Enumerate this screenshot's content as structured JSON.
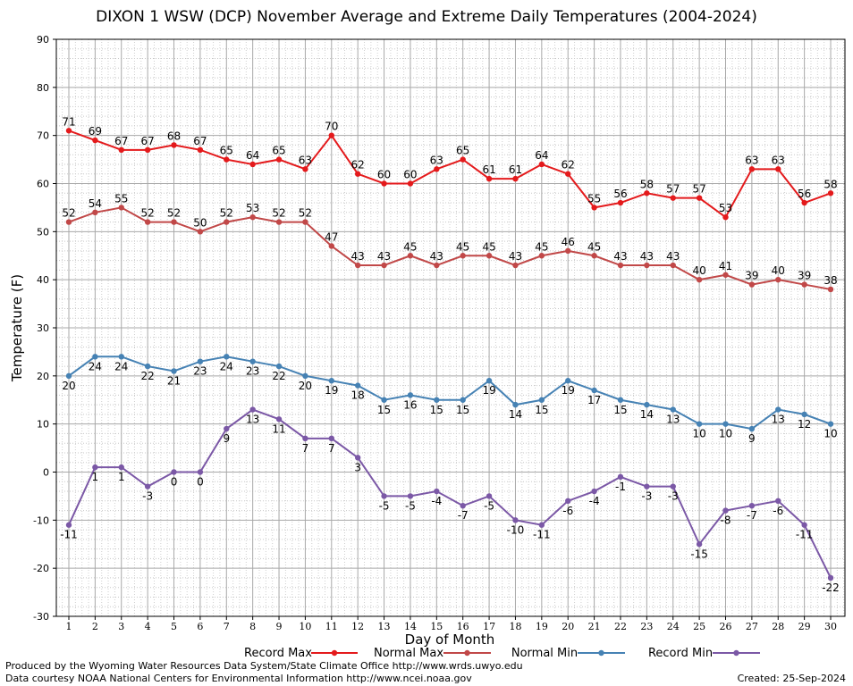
{
  "chart_data": {
    "type": "line",
    "title": "DIXON 1 WSW (DCP) November Average and Extreme Daily Temperatures (2004-2024)",
    "xlabel": "Day of Month",
    "ylabel": "Temperature (F)",
    "ylim": [
      -30,
      90
    ],
    "yticks": [
      -30,
      -20,
      -10,
      0,
      10,
      20,
      30,
      40,
      50,
      60,
      70,
      80,
      90
    ],
    "x": [
      1,
      2,
      3,
      4,
      5,
      6,
      7,
      8,
      9,
      10,
      11,
      12,
      13,
      14,
      15,
      16,
      17,
      18,
      19,
      20,
      21,
      22,
      23,
      24,
      25,
      26,
      27,
      28,
      29,
      30
    ],
    "grid": true,
    "legend": "bottom",
    "series": [
      {
        "name": "Record Max",
        "color": "#e41a1c",
        "label_pos": "above",
        "values": [
          71,
          69,
          67,
          67,
          68,
          67,
          65,
          64,
          65,
          63,
          70,
          62,
          60,
          60,
          63,
          65,
          61,
          61,
          64,
          62,
          55,
          56,
          58,
          57,
          57,
          53,
          63,
          63,
          56,
          58
        ]
      },
      {
        "name": "Normal Max",
        "color": "#c14848",
        "label_pos": "above",
        "values": [
          52,
          54,
          55,
          52,
          52,
          50,
          52,
          53,
          52,
          52,
          47,
          43,
          43,
          45,
          43,
          45,
          45,
          43,
          45,
          46,
          45,
          43,
          43,
          43,
          40,
          41,
          39,
          40,
          39,
          38
        ]
      },
      {
        "name": "Normal Min",
        "color": "#4682b4",
        "label_pos": "below",
        "values": [
          20,
          24,
          24,
          22,
          21,
          23,
          24,
          23,
          22,
          20,
          19,
          18,
          15,
          16,
          15,
          15,
          19,
          14,
          15,
          19,
          17,
          15,
          14,
          13,
          10,
          10,
          9,
          13,
          12,
          10
        ]
      },
      {
        "name": "Record Min",
        "color": "#7b58a6",
        "label_pos": "below",
        "values": [
          -11,
          1,
          1,
          -3,
          0,
          0,
          9,
          13,
          11,
          7,
          7,
          3,
          -5,
          -5,
          -4,
          -7,
          -5,
          -10,
          -11,
          -6,
          -4,
          -1,
          -3,
          -3,
          -15,
          -8,
          -7,
          -6,
          -11,
          -22
        ]
      }
    ]
  },
  "footer": {
    "produced_by": "Produced by the Wyoming Water Resources Data System/State Climate Office http://www.wrds.uwyo.edu",
    "data_courtesy": "Data courtesy NOAA National Centers for Environmental Information http://www.ncei.noaa.gov",
    "created": "Created:  25-Sep-2024"
  }
}
